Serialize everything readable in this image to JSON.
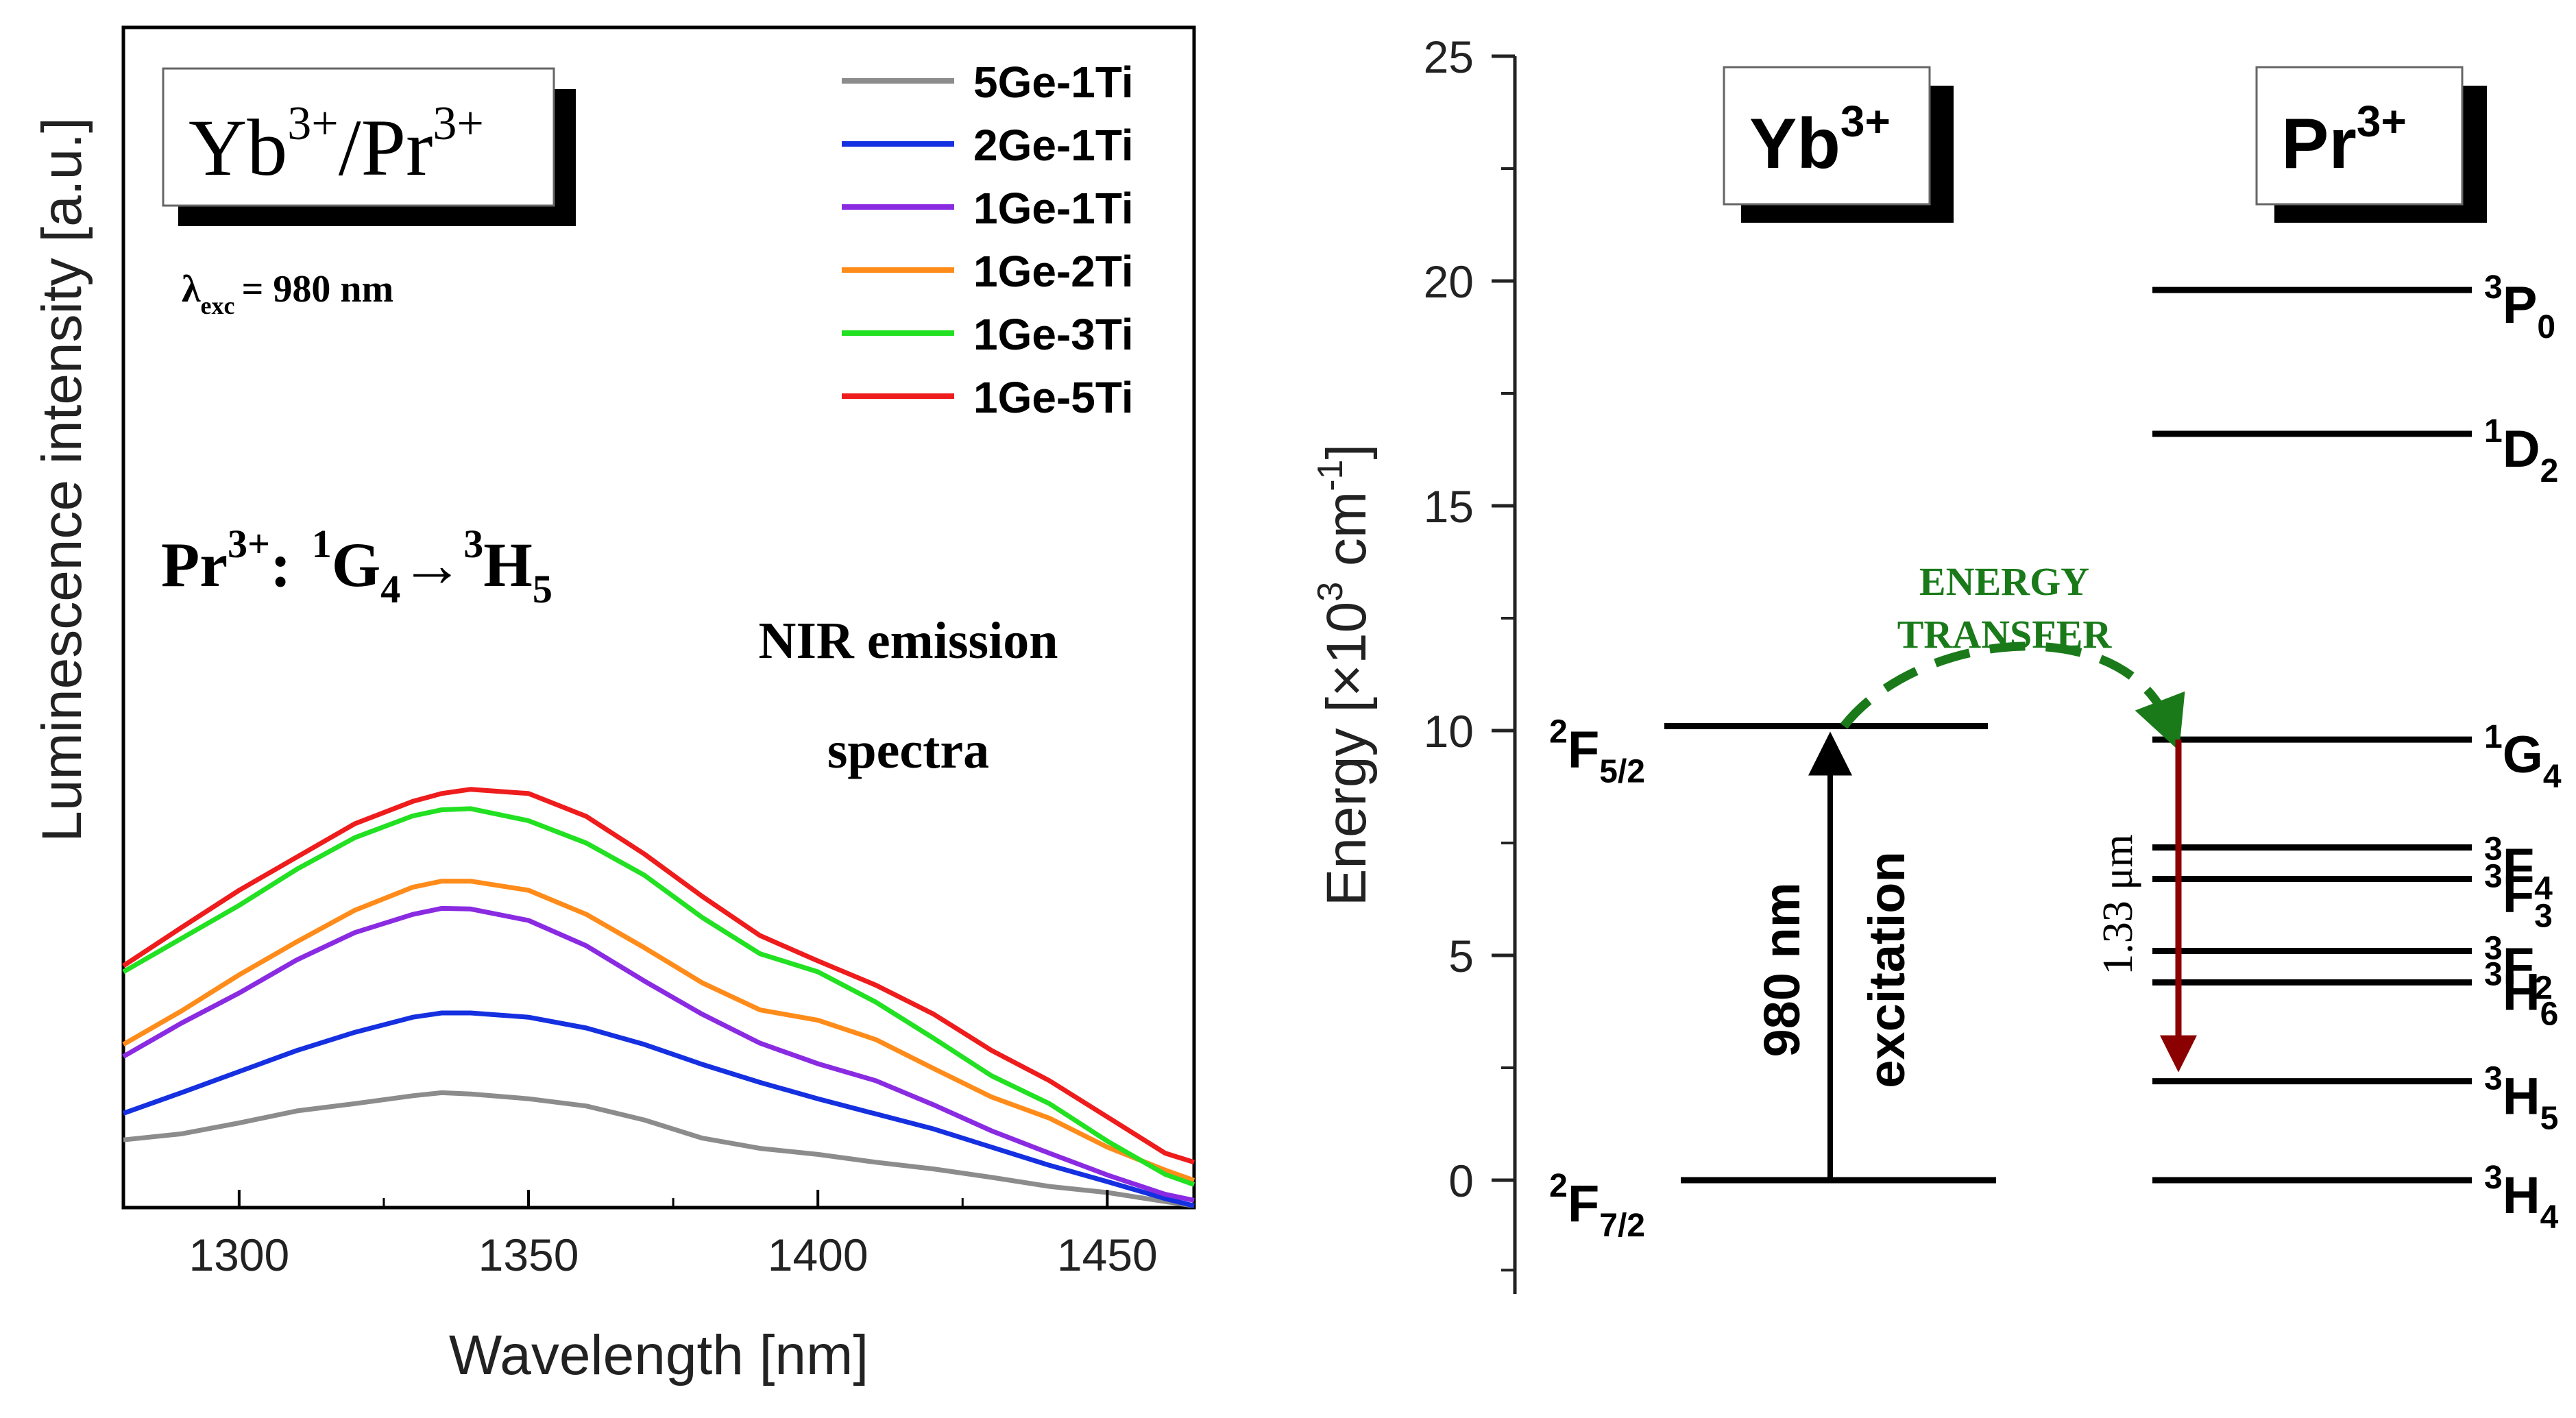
{
  "chart_data": [
    {
      "type": "line",
      "title": "",
      "xlabel": "Wavelength [nm]",
      "ylabel": "Luminescence intensity [a.u.]",
      "xlim": [
        1280,
        1465
      ],
      "ylim": [
        0,
        1
      ],
      "x_ticks": [
        1300,
        1350,
        1400,
        1450
      ],
      "grid": false,
      "legend_position": "top-right",
      "x": [
        1280,
        1290,
        1300,
        1310,
        1320,
        1330,
        1335,
        1340,
        1350,
        1360,
        1370,
        1380,
        1390,
        1400,
        1410,
        1420,
        1430,
        1440,
        1450,
        1460,
        1465
      ],
      "series": [
        {
          "name": "5Ge-1Ti",
          "color": "#8c8c8c",
          "values": [
            0.112,
            0.122,
            0.14,
            0.16,
            0.172,
            0.185,
            0.19,
            0.188,
            0.18,
            0.168,
            0.145,
            0.115,
            0.098,
            0.088,
            0.075,
            0.064,
            0.05,
            0.035,
            0.025,
            0.01,
            0.003
          ]
        },
        {
          "name": "2Ge-1Ti",
          "color": "#1530e0",
          "values": [
            0.156,
            0.19,
            0.225,
            0.26,
            0.29,
            0.315,
            0.322,
            0.322,
            0.315,
            0.297,
            0.27,
            0.237,
            0.207,
            0.18,
            0.155,
            0.13,
            0.1,
            0.07,
            0.043,
            0.015,
            0.003
          ]
        },
        {
          "name": "1Ge-1Ti",
          "color": "#8a2be2",
          "values": [
            0.25,
            0.305,
            0.355,
            0.41,
            0.455,
            0.485,
            0.495,
            0.494,
            0.475,
            0.433,
            0.375,
            0.32,
            0.272,
            0.238,
            0.21,
            0.17,
            0.127,
            0.09,
            0.054,
            0.022,
            0.012
          ]
        },
        {
          "name": "1Ge-2Ti",
          "color": "#ff8c1a",
          "values": [
            0.27,
            0.325,
            0.385,
            0.44,
            0.492,
            0.53,
            0.54,
            0.54,
            0.525,
            0.485,
            0.43,
            0.372,
            0.327,
            0.31,
            0.278,
            0.23,
            0.183,
            0.148,
            0.1,
            0.062,
            0.045
          ]
        },
        {
          "name": "1Ge-3Ti",
          "color": "#22e022",
          "values": [
            0.39,
            0.445,
            0.5,
            0.56,
            0.612,
            0.648,
            0.658,
            0.66,
            0.64,
            0.603,
            0.55,
            0.48,
            0.42,
            0.39,
            0.34,
            0.28,
            0.218,
            0.172,
            0.11,
            0.055,
            0.038
          ]
        },
        {
          "name": "1Ge-5Ti",
          "color": "#ee1c1c",
          "values": [
            0.4,
            0.463,
            0.525,
            0.58,
            0.635,
            0.672,
            0.685,
            0.692,
            0.685,
            0.647,
            0.585,
            0.515,
            0.45,
            0.408,
            0.368,
            0.32,
            0.26,
            0.21,
            0.15,
            0.09,
            0.075
          ]
        }
      ],
      "annotations": {
        "ion_box_left": "Yb",
        "ion_box_left_sup": "3+",
        "ion_box_right": "Pr",
        "ion_box_right_sup": "3+",
        "excitation_symbol": "λ",
        "excitation_sub": "exc",
        "excitation_value": "= 980 nm",
        "transition_ion": "Pr",
        "transition_ion_sup": "3+",
        "transition_colon": ":",
        "transition_start_sup": "1",
        "transition_start": "G",
        "transition_start_sub": "4",
        "transition_arrow": "→",
        "transition_end_sup": "3",
        "transition_end": "H",
        "transition_end_sub": "5",
        "emission_line1": "NIR emission",
        "emission_line2": "spectra"
      }
    },
    {
      "type": "energy_level_diagram",
      "title": "",
      "xlabel": "",
      "ylabel_prefix": "Energy [×10",
      "ylabel_exp": "3",
      "ylabel_unit": " cm",
      "ylabel_unit_exp": "-1",
      "ylabel_close": "]",
      "ylim": [
        -2,
        25
      ],
      "y_ticks": [
        0,
        5,
        10,
        15,
        20,
        25
      ],
      "columns": [
        {
          "ion": "Yb",
          "charge": "3+"
        },
        {
          "ion": "Pr",
          "charge": "3+"
        }
      ],
      "levels": [
        {
          "ion": "Yb",
          "sup": "2",
          "term": "F",
          "sub": "7/2",
          "energy": 0
        },
        {
          "ion": "Yb",
          "sup": "2",
          "term": "F",
          "sub": "5/2",
          "energy": 10.1
        },
        {
          "ion": "Pr",
          "sup": "3",
          "term": "H",
          "sub": "4",
          "energy": 0
        },
        {
          "ion": "Pr",
          "sup": "3",
          "term": "H",
          "sub": "5",
          "energy": 2.2
        },
        {
          "ion": "Pr",
          "sup": "3",
          "term": "H",
          "sub": "6",
          "energy": 4.4
        },
        {
          "ion": "Pr",
          "sup": "3",
          "term": "F",
          "sub": "2",
          "energy": 5.1
        },
        {
          "ion": "Pr",
          "sup": "3",
          "term": "F",
          "sub": "3",
          "energy": 6.7
        },
        {
          "ion": "Pr",
          "sup": "3",
          "term": "F",
          "sub": "4",
          "energy": 7.4
        },
        {
          "ion": "Pr",
          "sup": "1",
          "term": "G",
          "sub": "4",
          "energy": 9.8
        },
        {
          "ion": "Pr",
          "sup": "1",
          "term": "D",
          "sub": "2",
          "energy": 16.6
        },
        {
          "ion": "Pr",
          "sup": "3",
          "term": "P",
          "sub": "0",
          "energy": 19.8
        }
      ],
      "transitions": [
        {
          "kind": "excitation",
          "from_energy": 0,
          "to_energy": 10.1,
          "label1": "980 nm",
          "label2": "excitation",
          "color": "#000000"
        },
        {
          "kind": "energy-transfer",
          "from_energy": 10.1,
          "to_energy": 9.8,
          "label1": "ENERGY",
          "label2": "TRANSFER",
          "color": "#1a7a1a"
        },
        {
          "kind": "emission",
          "from_energy": 9.8,
          "to_energy": 2.2,
          "label1": "1.33 μm",
          "color": "#8b0000"
        }
      ]
    }
  ]
}
